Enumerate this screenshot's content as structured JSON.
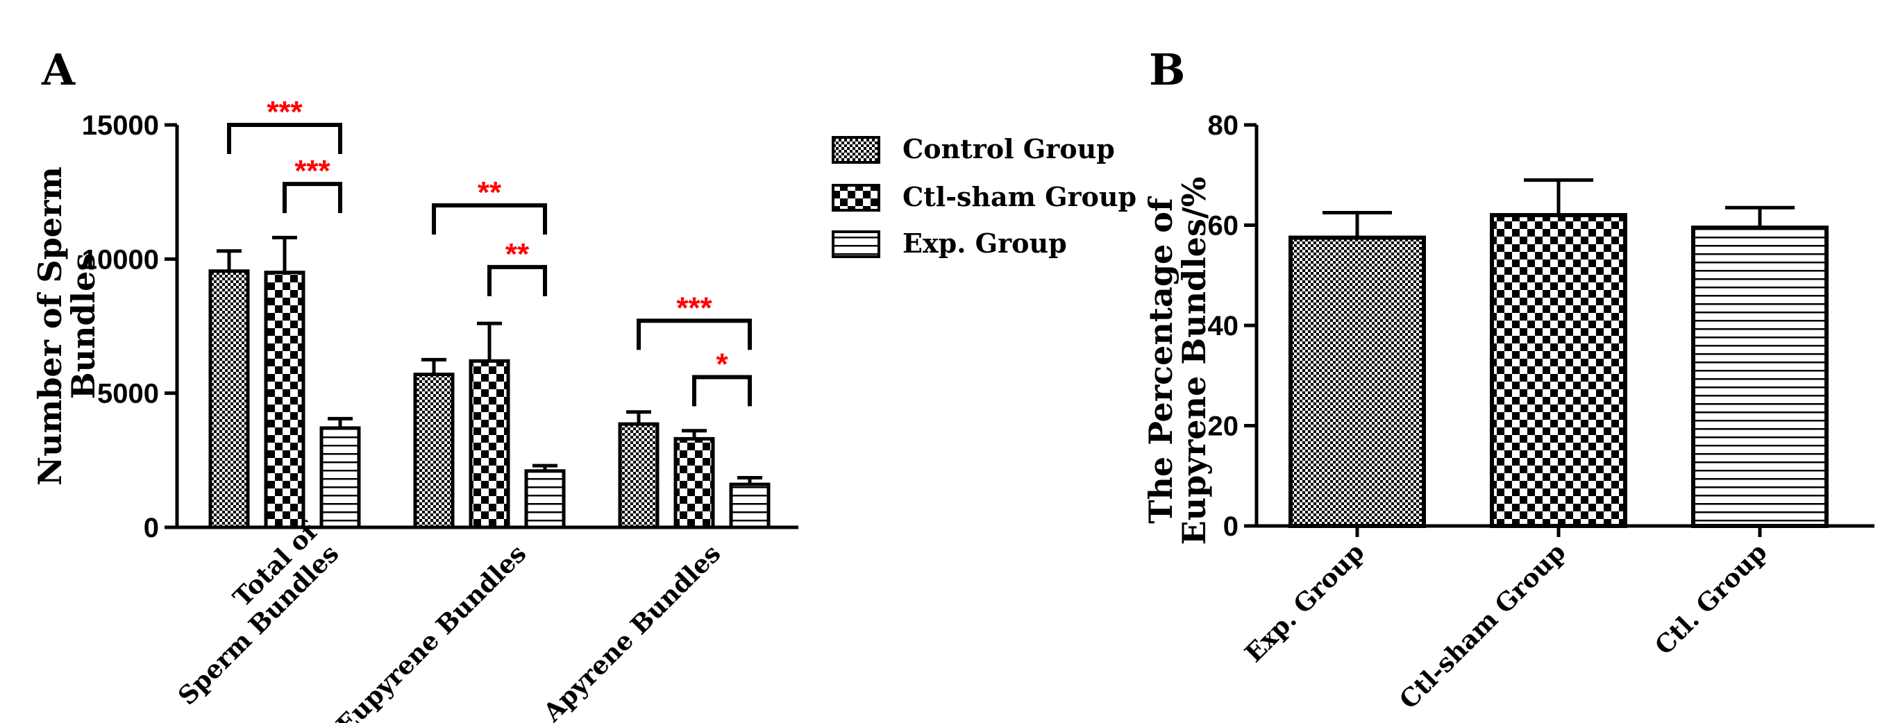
{
  "figure_labels": {
    "a": "A",
    "b": "B"
  },
  "colors": {
    "ink": "#000000",
    "significance": "#ff0000",
    "background": "#ffffff"
  },
  "chart_data": [
    {
      "id": "A",
      "type": "bar",
      "panel_label": "A",
      "title": "",
      "ylabel_line1": "Number of Sperm",
      "ylabel_line2": "Bundles",
      "xlabel": "",
      "ylim": [
        0,
        15000
      ],
      "yticks": [
        0,
        5000,
        10000,
        15000
      ],
      "categories": [
        {
          "lines": [
            "Total of",
            "Sperm Bundles"
          ]
        },
        {
          "lines": [
            "Eupyrene Bundles"
          ]
        },
        {
          "lines": [
            "Apyrene Bundles"
          ]
        }
      ],
      "series": [
        {
          "name": "Control Group",
          "pattern": "fine-check",
          "values": [
            9550,
            5700,
            3850
          ],
          "errors": [
            750,
            550,
            450
          ]
        },
        {
          "name": "Ctl-sham Group",
          "pattern": "coarse-check",
          "values": [
            9500,
            6200,
            3300
          ],
          "errors": [
            1300,
            1400,
            300
          ]
        },
        {
          "name": "Exp. Group",
          "pattern": "hlines",
          "values": [
            3700,
            2100,
            1600
          ],
          "errors": [
            350,
            200,
            250
          ]
        }
      ],
      "legend_position": "right",
      "significance": [
        {
          "category": 0,
          "from": 0,
          "to": 2,
          "label": "***",
          "level": 15000
        },
        {
          "category": 0,
          "from": 1,
          "to": 2,
          "label": "***",
          "level": 12800
        },
        {
          "category": 1,
          "from": 0,
          "to": 2,
          "label": "**",
          "level": 12000
        },
        {
          "category": 1,
          "from": 1,
          "to": 2,
          "label": "**",
          "level": 9700
        },
        {
          "category": 2,
          "from": 0,
          "to": 2,
          "label": "***",
          "level": 7700
        },
        {
          "category": 2,
          "from": 1,
          "to": 2,
          "label": "*",
          "level": 5600
        }
      ]
    },
    {
      "id": "B",
      "type": "bar",
      "panel_label": "B",
      "title": "",
      "ylabel_line1": "The Percentage of",
      "ylabel_line2": "Eupyrene Bundles/%",
      "xlabel": "",
      "ylim": [
        0,
        80
      ],
      "yticks": [
        0,
        20,
        40,
        60,
        80
      ],
      "categories": [
        "Exp. Group",
        "Ctl-sham Group",
        "Ctl. Group"
      ],
      "patterns": [
        "fine-check",
        "coarse-check",
        "hlines"
      ],
      "values": [
        57.5,
        62.0,
        59.5
      ],
      "errors": [
        5.0,
        7.0,
        4.0
      ]
    }
  ]
}
